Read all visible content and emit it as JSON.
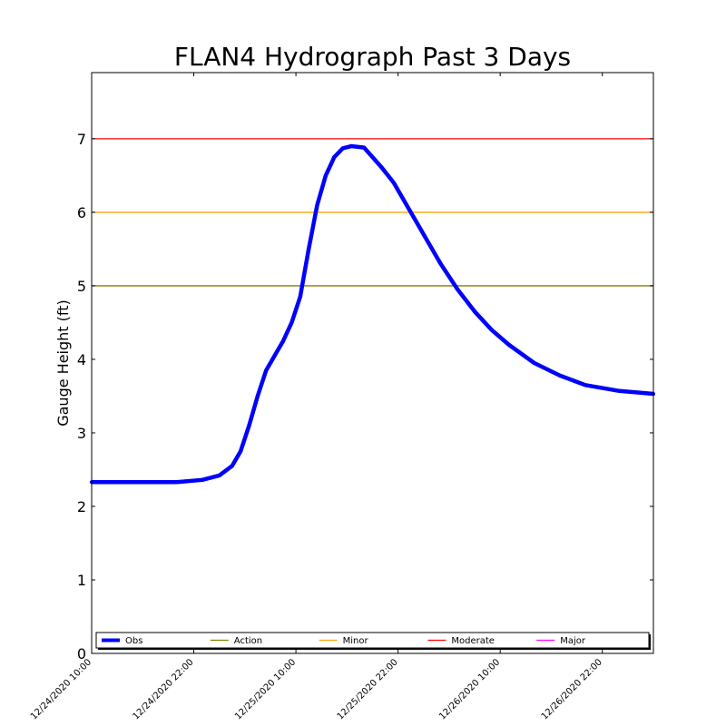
{
  "chart_data": {
    "type": "line",
    "title": "FLAN4 Hydrograph Past 3 Days",
    "ylabel": "Gauge Height (ft)",
    "xlabel": "",
    "ylim": [
      0,
      7.9
    ],
    "yticks": [
      0,
      1,
      2,
      3,
      4,
      5,
      6,
      7
    ],
    "xlim": [
      "12/24/2020 10:00",
      "12/27/2020 04:00"
    ],
    "xticks": [
      "12/24/2020 10:00",
      "12/24/2020 22:00",
      "12/25/2020 10:00",
      "12/25/2020 22:00",
      "12/26/2020 10:00",
      "12/26/2020 22:00"
    ],
    "grid": false,
    "legend_position": "bottom",
    "thresholds": [
      {
        "name": "Action",
        "value": 5,
        "color": "#808000"
      },
      {
        "name": "Minor",
        "value": 6,
        "color": "#FFA500"
      },
      {
        "name": "Moderate",
        "value": 7,
        "color": "#FF0000"
      },
      {
        "name": "Major",
        "color": "#FF00FF"
      }
    ],
    "series": [
      {
        "name": "Obs",
        "color": "#0000FF",
        "points": [
          [
            "12/24/2020 10:00",
            2.33
          ],
          [
            "12/24/2020 16:00",
            2.33
          ],
          [
            "12/24/2020 20:00",
            2.33
          ],
          [
            "12/24/2020 23:00",
            2.36
          ],
          [
            "12/25/2020 01:00",
            2.42
          ],
          [
            "12/25/2020 02:30",
            2.55
          ],
          [
            "12/25/2020 03:30",
            2.75
          ],
          [
            "12/25/2020 04:30",
            3.1
          ],
          [
            "12/25/2020 05:30",
            3.5
          ],
          [
            "12/25/2020 06:30",
            3.85
          ],
          [
            "12/25/2020 07:30",
            4.05
          ],
          [
            "12/25/2020 08:30",
            4.25
          ],
          [
            "12/25/2020 09:30",
            4.5
          ],
          [
            "12/25/2020 10:30",
            4.85
          ],
          [
            "12/25/2020 11:30",
            5.5
          ],
          [
            "12/25/2020 12:30",
            6.1
          ],
          [
            "12/25/2020 13:30",
            6.5
          ],
          [
            "12/25/2020 14:30",
            6.75
          ],
          [
            "12/25/2020 15:30",
            6.87
          ],
          [
            "12/25/2020 16:30",
            6.9
          ],
          [
            "12/25/2020 18:00",
            6.88
          ],
          [
            "12/25/2020 19:00",
            6.75
          ],
          [
            "12/25/2020 20:00",
            6.62
          ],
          [
            "12/25/2020 21:30",
            6.4
          ],
          [
            "12/25/2020 23:00",
            6.1
          ],
          [
            "12/26/2020 01:00",
            5.7
          ],
          [
            "12/26/2020 03:00",
            5.3
          ],
          [
            "12/26/2020 05:00",
            4.95
          ],
          [
            "12/26/2020 07:00",
            4.65
          ],
          [
            "12/26/2020 09:00",
            4.4
          ],
          [
            "12/26/2020 11:00",
            4.2
          ],
          [
            "12/26/2020 14:00",
            3.95
          ],
          [
            "12/26/2020 17:00",
            3.78
          ],
          [
            "12/26/2020 20:00",
            3.65
          ],
          [
            "12/27/2020 00:00",
            3.57
          ],
          [
            "12/27/2020 04:00",
            3.53
          ]
        ]
      }
    ]
  }
}
